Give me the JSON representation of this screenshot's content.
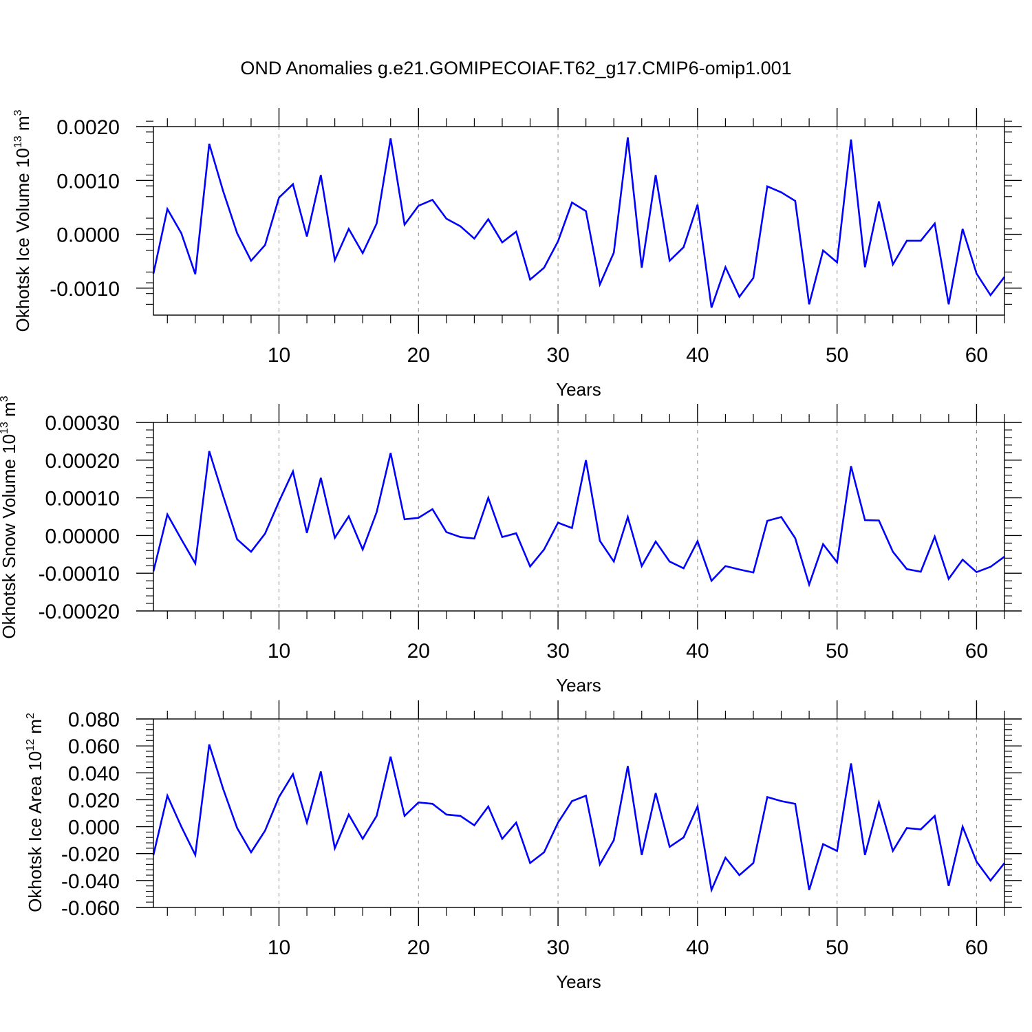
{
  "title": "OND Anomalies g.e21.GOMIPECOIAF.T62_g17.CMIP6-omip1.001",
  "colors": {
    "line": "#0000ff",
    "axis": "#000000",
    "grid": "#8c8c8c"
  },
  "chart_data": [
    {
      "type": "line",
      "ylabel": {
        "prefix": "Okhotsk Ice Volume 10",
        "exp": "13",
        "unit": " m",
        "unit_exp": "3"
      },
      "xlabel": "Years",
      "xlim": [
        1,
        62
      ],
      "ylim": [
        -0.0015,
        0.002
      ],
      "xticks": [
        10,
        20,
        30,
        40,
        50,
        60
      ],
      "xtick_labels": [
        "10",
        "20",
        "30",
        "40",
        "50",
        "60"
      ],
      "yticks": [
        -0.001,
        0.0,
        0.001,
        0.002
      ],
      "ytick_labels": [
        "-0.0010",
        "0.0000",
        "0.0010",
        "0.0020"
      ],
      "grid_x": true,
      "x": [
        1,
        2,
        3,
        4,
        5,
        6,
        7,
        8,
        9,
        10,
        11,
        12,
        13,
        14,
        15,
        16,
        17,
        18,
        19,
        20,
        21,
        22,
        23,
        24,
        25,
        26,
        27,
        28,
        29,
        30,
        31,
        32,
        33,
        34,
        35,
        36,
        37,
        38,
        39,
        40,
        41,
        42,
        43,
        44,
        45,
        46,
        47,
        48,
        49,
        50,
        51,
        52,
        53,
        54,
        55,
        56,
        57,
        58,
        59,
        60,
        61,
        62
      ],
      "series": [
        {
          "values": [
            -0.00073,
            0.00047,
            2e-05,
            -0.00074,
            0.00168,
            0.0008,
            2e-05,
            -0.00049,
            -0.0002,
            0.00068,
            0.00093,
            -4e-05,
            0.0011,
            -0.00048,
            0.0001,
            -0.00035,
            0.0002,
            0.00178,
            0.00018,
            0.00053,
            0.00064,
            0.00029,
            0.00015,
            -8e-05,
            0.00028,
            -0.00015,
            5e-05,
            -0.00084,
            -0.00062,
            -0.00013,
            0.00059,
            0.00043,
            -0.00093,
            -0.00034,
            0.0018,
            -0.00062,
            0.0011,
            -0.00049,
            -0.00024,
            0.00055,
            -0.00136,
            -0.00061,
            -0.00116,
            -0.00081,
            0.00089,
            0.00078,
            0.00062,
            -0.0013,
            -0.0003,
            -0.00052,
            0.00176,
            -0.00061,
            0.00061,
            -0.00056,
            -0.00012,
            -0.00012,
            0.0002,
            -0.0013,
            0.0001,
            -0.00073,
            -0.00113,
            -0.00079
          ]
        }
      ]
    },
    {
      "type": "line",
      "ylabel": {
        "prefix": "Okhotsk Snow Volume 10",
        "exp": "13",
        "unit": " m",
        "unit_exp": "3"
      },
      "xlabel": "Years",
      "xlim": [
        1,
        62
      ],
      "ylim": [
        -0.0002,
        0.0003
      ],
      "xticks": [
        10,
        20,
        30,
        40,
        50,
        60
      ],
      "xtick_labels": [
        "10",
        "20",
        "30",
        "40",
        "50",
        "60"
      ],
      "yticks": [
        -0.0002,
        -0.0001,
        0.0,
        0.0001,
        0.0002,
        0.0003
      ],
      "ytick_labels": [
        "-0.00020",
        "-0.00010",
        "0.00000",
        "0.00010",
        "0.00020",
        "0.00030"
      ],
      "grid_x": true,
      "x": [
        1,
        2,
        3,
        4,
        5,
        6,
        7,
        8,
        9,
        10,
        11,
        12,
        13,
        14,
        15,
        16,
        17,
        18,
        19,
        20,
        21,
        22,
        23,
        24,
        25,
        26,
        27,
        28,
        29,
        30,
        31,
        32,
        33,
        34,
        35,
        36,
        37,
        38,
        39,
        40,
        41,
        42,
        43,
        44,
        45,
        46,
        47,
        48,
        49,
        50,
        51,
        52,
        53,
        54,
        55,
        56,
        57,
        58,
        59,
        60,
        61,
        62
      ],
      "series": [
        {
          "values": [
            -9.5e-05,
            5.6e-05,
            -1e-05,
            -7.4e-05,
            0.000224,
            0.000105,
            -1e-05,
            -4.3e-05,
            5e-06,
            9e-05,
            0.00017,
            7e-06,
            0.000153,
            -6e-06,
            5.1e-05,
            -3.7e-05,
            6.2e-05,
            0.000219,
            4.3e-05,
            4.7e-05,
            7e-05,
            9e-06,
            -4e-06,
            -8e-06,
            0.0001,
            -4e-06,
            6e-06,
            -8.2e-05,
            -3.7e-05,
            3.4e-05,
            2e-05,
            0.0002,
            -1.4e-05,
            -6.9e-05,
            4.9e-05,
            -8.1e-05,
            -1.6e-05,
            -6.9e-05,
            -8.7e-05,
            -1.5e-05,
            -0.00012,
            -8.1e-05,
            -9e-05,
            -9.8e-05,
            3.9e-05,
            4.9e-05,
            -7e-06,
            -0.00013,
            -2.3e-05,
            -7.1e-05,
            0.000184,
            4.1e-05,
            4e-05,
            -4.3e-05,
            -8.9e-05,
            -9.6e-05,
            -3e-06,
            -0.000115,
            -6.4e-05,
            -9.7e-05,
            -8.3e-05,
            -5.6e-05
          ]
        }
      ]
    },
    {
      "type": "line",
      "ylabel": {
        "prefix": "Okhotsk Ice Area 10",
        "exp": "12",
        "unit": " m",
        "unit_exp": "2"
      },
      "xlabel": "Years",
      "xlim": [
        1,
        62
      ],
      "ylim": [
        -0.06,
        0.08
      ],
      "xticks": [
        10,
        20,
        30,
        40,
        50,
        60
      ],
      "xtick_labels": [
        "10",
        "20",
        "30",
        "40",
        "50",
        "60"
      ],
      "yticks": [
        -0.06,
        -0.04,
        -0.02,
        0.0,
        0.02,
        0.04,
        0.06,
        0.08
      ],
      "ytick_labels": [
        "-0.060",
        "-0.040",
        "-0.020",
        "0.000",
        "0.020",
        "0.040",
        "0.060",
        "0.080"
      ],
      "grid_x": true,
      "x": [
        1,
        2,
        3,
        4,
        5,
        6,
        7,
        8,
        9,
        10,
        11,
        12,
        13,
        14,
        15,
        16,
        17,
        18,
        19,
        20,
        21,
        22,
        23,
        24,
        25,
        26,
        27,
        28,
        29,
        30,
        31,
        32,
        33,
        34,
        35,
        36,
        37,
        38,
        39,
        40,
        41,
        42,
        43,
        44,
        45,
        46,
        47,
        48,
        49,
        50,
        51,
        52,
        53,
        54,
        55,
        56,
        57,
        58,
        59,
        60,
        61,
        62
      ],
      "series": [
        {
          "values": [
            -0.021,
            0.023,
            0.0,
            -0.021,
            0.061,
            0.028,
            -0.001,
            -0.019,
            -0.003,
            0.022,
            0.039,
            0.003,
            0.041,
            -0.016,
            0.009,
            -0.009,
            0.008,
            0.052,
            0.008,
            0.018,
            0.017,
            0.009,
            0.008,
            0.001,
            0.015,
            -0.009,
            0.003,
            -0.027,
            -0.019,
            0.003,
            0.019,
            0.023,
            -0.028,
            -0.01,
            0.045,
            -0.021,
            0.025,
            -0.015,
            -0.008,
            0.015,
            -0.047,
            -0.023,
            -0.036,
            -0.027,
            0.022,
            0.019,
            0.017,
            -0.047,
            -0.013,
            -0.018,
            0.047,
            -0.021,
            0.018,
            -0.018,
            -0.001,
            -0.002,
            0.008,
            -0.044,
            0.0,
            -0.026,
            -0.04,
            -0.027
          ]
        }
      ]
    }
  ]
}
